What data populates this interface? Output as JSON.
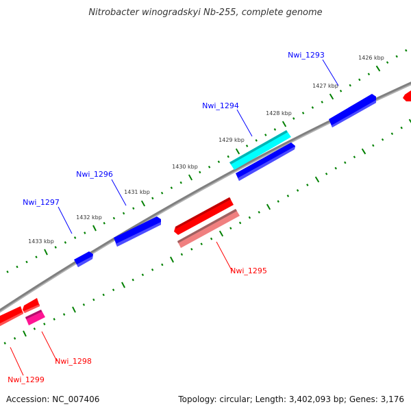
{
  "title": "Nitrobacter winogradskyi Nb-255, complete genome",
  "footer": {
    "accession": "Accession: NC_007406",
    "summary": "Topology: circular; Length: 3,402,093 bp; Genes: 3,176"
  },
  "colors": {
    "backbone": "#808080",
    "tick": "#008000",
    "forward": "#0000ff",
    "reverse": "#ff0000",
    "highlight": "#00ffff",
    "light_red": "#f08080",
    "magenta": "#ff1493"
  },
  "ticks": [
    "1433 kbp",
    "1432 kbp",
    "1431 kbp",
    "1430 kbp",
    "1429 kbp",
    "1428 kbp",
    "1427 kbp",
    "1426 kbp"
  ],
  "genes": {
    "nwi_1293": "Nwi_1293",
    "nwi_1294": "Nwi_1294",
    "nwi_1295": "Nwi_1295",
    "nwi_1296": "Nwi_1296",
    "nwi_1297": "Nwi_1297",
    "nwi_1298": "Nwi_1298",
    "nwi_1299": "Nwi_1299"
  }
}
